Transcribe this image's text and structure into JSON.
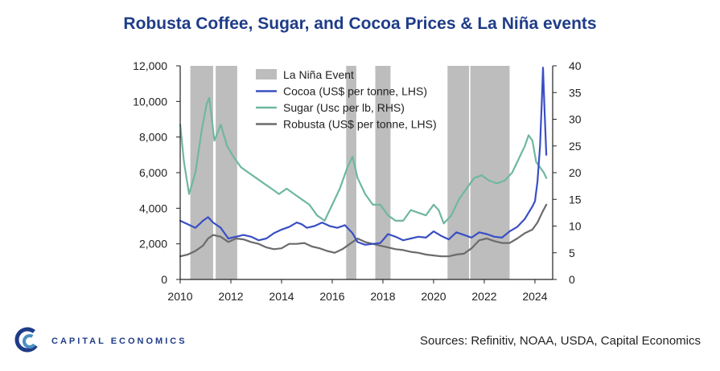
{
  "title": "Robusta Coffee, Sugar, and Cocoa Prices & La Niña events",
  "source": "Sources: Refinitiv, NOAA, USDA, Capital Economics",
  "logo": {
    "text": "CAPITAL ECONOMICS"
  },
  "colors": {
    "cocoa": "#3a4fc4",
    "sugar": "#6fb7a0",
    "robusta": "#6b6b6b",
    "lanina": "#bdbdbd",
    "title": "#1f3c88"
  },
  "chart_data": {
    "type": "line",
    "title": "Robusta Coffee, Sugar, and Cocoa Prices & La Niña events",
    "x_range": [
      2010,
      2024.7
    ],
    "x_ticks": [
      "2010",
      "2012",
      "2014",
      "2016",
      "2018",
      "2020",
      "2022",
      "2024"
    ],
    "y_left": {
      "range": [
        0,
        12000
      ],
      "ticks": [
        "0",
        "2,000",
        "4,000",
        "6,000",
        "8,000",
        "10,000",
        "12,000"
      ]
    },
    "y_right": {
      "range": [
        0,
        40
      ],
      "ticks": [
        "0",
        "5",
        "10",
        "15",
        "20",
        "25",
        "30",
        "35",
        "40"
      ]
    },
    "grid": false,
    "legend_position": "top-center",
    "shaded_periods": {
      "name": "La Niña Event",
      "ranges": [
        [
          2010.4,
          2011.3
        ],
        [
          2011.4,
          2012.25
        ],
        [
          2016.55,
          2016.95
        ],
        [
          2017.7,
          2018.3
        ],
        [
          2020.55,
          2021.4
        ],
        [
          2021.45,
          2023.0
        ]
      ]
    },
    "series": [
      {
        "name": "Cocoa (US$ per tonne, LHS)",
        "axis": "left",
        "x": [
          2010,
          2010.3,
          2010.6,
          2010.9,
          2011.1,
          2011.3,
          2011.6,
          2011.9,
          2012.2,
          2012.5,
          2012.8,
          2013.1,
          2013.4,
          2013.7,
          2014.0,
          2014.3,
          2014.6,
          2014.8,
          2015.0,
          2015.3,
          2015.6,
          2015.9,
          2016.2,
          2016.5,
          2016.8,
          2017.0,
          2017.3,
          2017.6,
          2017.9,
          2018.2,
          2018.5,
          2018.8,
          2019.1,
          2019.4,
          2019.7,
          2020.0,
          2020.3,
          2020.6,
          2020.9,
          2021.2,
          2021.5,
          2021.8,
          2022.1,
          2022.4,
          2022.7,
          2023.0,
          2023.3,
          2023.6,
          2023.9,
          2024.0,
          2024.1,
          2024.2,
          2024.27,
          2024.32,
          2024.38,
          2024.45
        ],
        "y": [
          3300,
          3100,
          2900,
          3300,
          3500,
          3200,
          2900,
          2300,
          2400,
          2500,
          2400,
          2200,
          2300,
          2600,
          2800,
          2950,
          3200,
          3100,
          2900,
          3000,
          3200,
          3000,
          2900,
          3050,
          2600,
          2100,
          1950,
          2000,
          2050,
          2550,
          2400,
          2200,
          2300,
          2400,
          2350,
          2700,
          2450,
          2250,
          2650,
          2500,
          2350,
          2650,
          2550,
          2400,
          2350,
          2700,
          2950,
          3400,
          4100,
          4400,
          5500,
          7500,
          10000,
          11900,
          9500,
          7000
        ]
      },
      {
        "name": "Sugar (Usc per lb, RHS)",
        "axis": "right",
        "x": [
          2010,
          2010.15,
          2010.35,
          2010.6,
          2010.85,
          2011.05,
          2011.15,
          2011.35,
          2011.6,
          2011.85,
          2012.1,
          2012.4,
          2012.7,
          2013.0,
          2013.3,
          2013.6,
          2013.9,
          2014.2,
          2014.5,
          2014.8,
          2015.1,
          2015.4,
          2015.7,
          2016.0,
          2016.3,
          2016.6,
          2016.8,
          2017.0,
          2017.3,
          2017.6,
          2017.9,
          2018.2,
          2018.5,
          2018.8,
          2019.1,
          2019.4,
          2019.7,
          2020.0,
          2020.2,
          2020.4,
          2020.7,
          2021.0,
          2021.3,
          2021.6,
          2021.9,
          2022.2,
          2022.5,
          2022.8,
          2023.1,
          2023.4,
          2023.6,
          2023.75,
          2023.9,
          2024.05,
          2024.2,
          2024.35,
          2024.45
        ],
        "y": [
          29,
          22,
          16,
          20,
          28,
          33,
          34,
          26,
          29,
          25,
          23,
          21,
          20,
          19,
          18,
          17,
          16,
          17,
          16,
          15,
          14,
          12,
          11,
          14,
          17,
          21,
          23,
          19,
          16,
          14,
          14,
          12,
          11,
          11,
          13,
          12.5,
          12,
          14,
          13,
          10.5,
          12,
          15,
          17,
          19,
          19.5,
          18.5,
          18,
          18.5,
          20,
          23,
          25,
          27,
          26,
          22,
          21,
          20,
          19
        ]
      },
      {
        "name": "Robusta (US$ per tonne, LHS)",
        "axis": "left",
        "x": [
          2010,
          2010.3,
          2010.6,
          2010.9,
          2011.1,
          2011.3,
          2011.6,
          2011.9,
          2012.2,
          2012.5,
          2012.8,
          2013.1,
          2013.4,
          2013.7,
          2014.0,
          2014.3,
          2014.6,
          2014.9,
          2015.2,
          2015.5,
          2015.8,
          2016.1,
          2016.4,
          2016.7,
          2017.0,
          2017.3,
          2017.6,
          2017.9,
          2018.2,
          2018.5,
          2018.8,
          2019.1,
          2019.4,
          2019.7,
          2020.0,
          2020.3,
          2020.6,
          2020.9,
          2021.2,
          2021.5,
          2021.8,
          2022.1,
          2022.4,
          2022.7,
          2023.0,
          2023.3,
          2023.6,
          2023.9,
          2024.1,
          2024.3,
          2024.45
        ],
        "y": [
          1300,
          1400,
          1600,
          1900,
          2300,
          2500,
          2400,
          2100,
          2300,
          2250,
          2100,
          2000,
          1800,
          1700,
          1750,
          2000,
          2000,
          2050,
          1850,
          1750,
          1600,
          1500,
          1700,
          2000,
          2300,
          2100,
          2000,
          1900,
          1800,
          1700,
          1650,
          1550,
          1500,
          1400,
          1350,
          1300,
          1300,
          1400,
          1450,
          1750,
          2200,
          2300,
          2150,
          2050,
          2050,
          2300,
          2600,
          2800,
          3200,
          3800,
          4200
        ]
      }
    ]
  }
}
